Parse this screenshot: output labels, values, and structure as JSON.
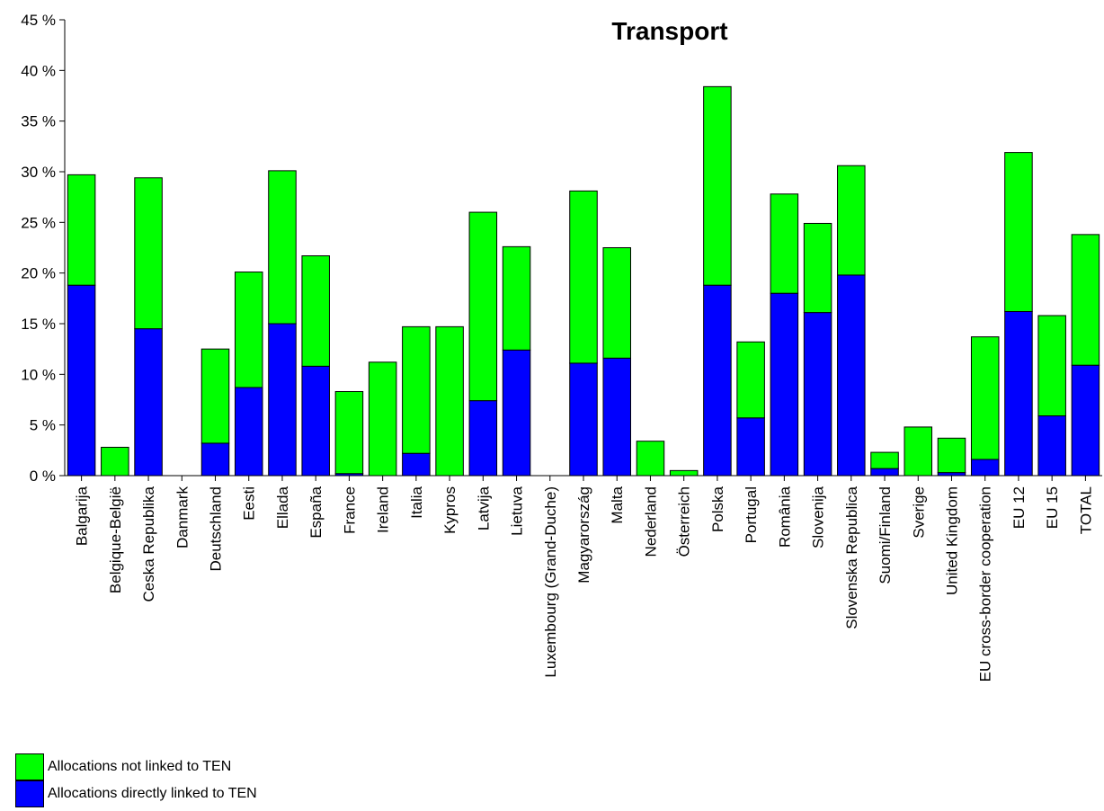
{
  "chart_data": {
    "type": "bar",
    "stacked": true,
    "title": "Transport",
    "xlabel": "",
    "ylabel": "",
    "ylim": [
      0,
      45
    ],
    "yticks": [
      0,
      5,
      10,
      15,
      20,
      25,
      30,
      35,
      40,
      45
    ],
    "ytick_suffix": " %",
    "grid": false,
    "legend_position": "bottom-left",
    "categories": [
      "Balgarija",
      "Belgique-België",
      "Ceska Republika",
      "Danmark",
      "Deutschland",
      "Eesti",
      "Ellada",
      "España",
      "France",
      "Ireland",
      "Italia",
      "Kypros",
      "Latvija",
      "Lietuva",
      "Luxembourg (Grand-Duche)",
      "Magyarország",
      "Malta",
      "Nederland",
      "Österreich",
      "Polska",
      "Portugal",
      "România",
      "Slovenija",
      "Slovenska Republica",
      "Suomi/Finland",
      "Sverige",
      "United Kingdom",
      "EU cross-border cooperation",
      "EU 12",
      "EU 15",
      "TOTAL"
    ],
    "series": [
      {
        "name": "Allocations directly linked to TEN",
        "color": "#0000ff",
        "values": [
          18.8,
          0,
          14.5,
          0,
          3.2,
          8.7,
          15.0,
          10.8,
          0.2,
          0,
          2.2,
          0,
          7.4,
          12.4,
          0,
          11.1,
          11.6,
          0,
          0,
          18.8,
          5.7,
          18.0,
          16.1,
          19.8,
          0.7,
          0,
          0.3,
          1.6,
          16.2,
          5.9,
          10.9
        ]
      },
      {
        "name": "Allocations not linked to TEN",
        "color": "#00ff00",
        "values": [
          10.9,
          2.8,
          14.9,
          0,
          9.3,
          11.4,
          15.1,
          10.9,
          8.1,
          11.2,
          12.5,
          14.7,
          18.6,
          10.2,
          0,
          17.0,
          10.9,
          3.4,
          0.5,
          19.6,
          7.5,
          9.8,
          8.8,
          10.8,
          1.6,
          4.8,
          3.4,
          12.1,
          15.7,
          9.9,
          12.9
        ]
      }
    ]
  },
  "legend": {
    "items": [
      {
        "label": "Allocations not linked to TEN",
        "color": "#00ff00"
      },
      {
        "label": "Allocations directly linked to TEN",
        "color": "#0000ff"
      }
    ]
  }
}
